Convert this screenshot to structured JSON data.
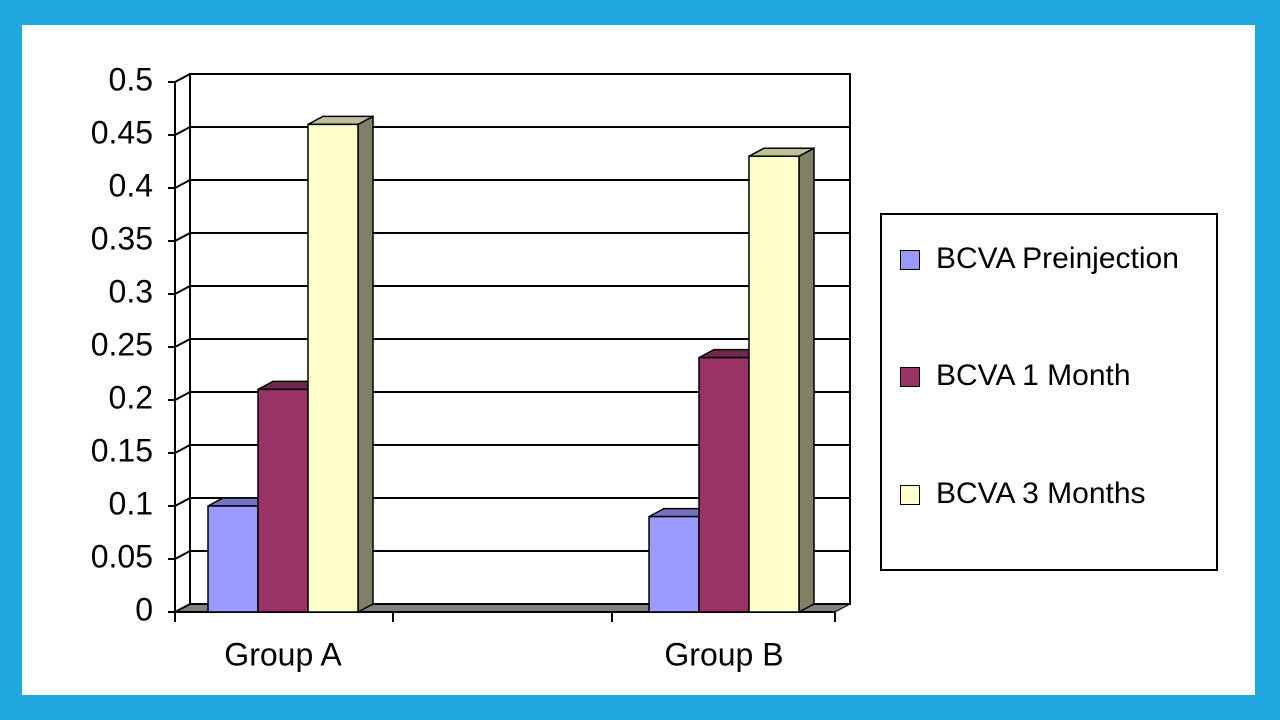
{
  "chart_data": {
    "type": "bar3d",
    "categories": [
      "Group A",
      "Group B"
    ],
    "series": [
      {
        "name": "BCVA Preinjection",
        "color": "#9999ff",
        "values": [
          0.1,
          0.09
        ]
      },
      {
        "name": "BCVA 1 Month",
        "color": "#993366",
        "values": [
          0.21,
          0.24
        ]
      },
      {
        "name": "BCVA 3 Months",
        "color": "#ffffcc",
        "values": [
          0.46,
          0.43
        ]
      }
    ],
    "ylim": [
      0,
      0.5
    ],
    "yticks": [
      0,
      0.05,
      0.1,
      0.15,
      0.2,
      0.25,
      0.3,
      0.35,
      0.4,
      0.45,
      0.5
    ],
    "grid": true,
    "legend": "right"
  }
}
